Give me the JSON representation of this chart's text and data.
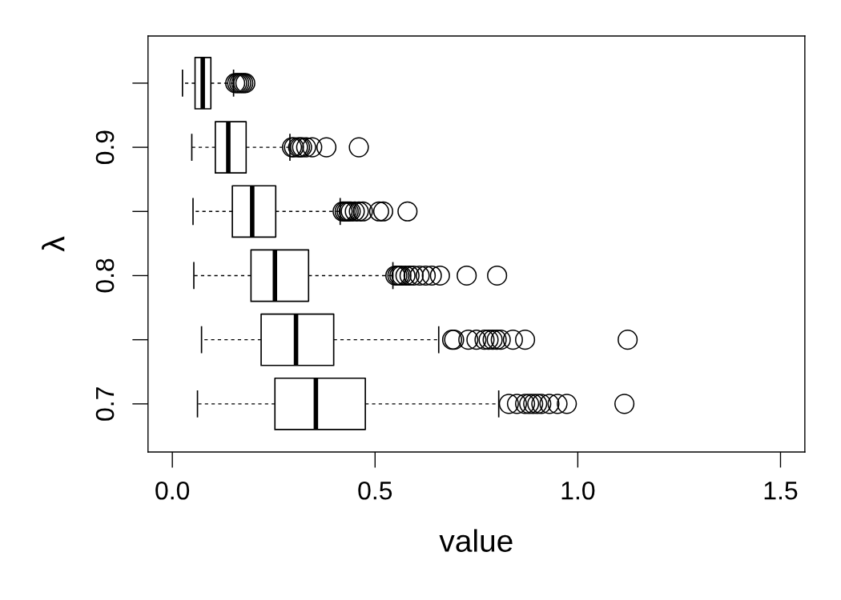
{
  "chart_data": {
    "type": "box",
    "orientation": "horizontal",
    "xlabel": "value",
    "ylabel": "λ",
    "categories": [
      null,
      "0.9",
      null,
      "0.8",
      null,
      "0.7"
    ],
    "boxes": [
      {
        "low": 0.025,
        "q1": 0.056,
        "median": 0.075,
        "q3": 0.095,
        "high": 0.151,
        "outliers": [
          0.155,
          0.16,
          0.165,
          0.17,
          0.175,
          0.18
        ]
      },
      {
        "low": 0.048,
        "q1": 0.106,
        "median": 0.138,
        "q3": 0.182,
        "high": 0.29,
        "outliers": [
          0.295,
          0.3,
          0.31,
          0.315,
          0.32,
          0.33,
          0.345,
          0.38,
          0.46
        ]
      },
      {
        "low": 0.051,
        "q1": 0.148,
        "median": 0.197,
        "q3": 0.255,
        "high": 0.414,
        "outliers": [
          0.42,
          0.425,
          0.43,
          0.435,
          0.44,
          0.45,
          0.46,
          0.47,
          0.51,
          0.52,
          0.58
        ]
      },
      {
        "low": 0.053,
        "q1": 0.194,
        "median": 0.253,
        "q3": 0.336,
        "high": 0.544,
        "outliers": [
          0.55,
          0.555,
          0.56,
          0.565,
          0.575,
          0.585,
          0.595,
          0.61,
          0.625,
          0.64,
          0.66,
          0.726,
          0.801
        ]
      },
      {
        "low": 0.072,
        "q1": 0.219,
        "median": 0.305,
        "q3": 0.398,
        "high": 0.657,
        "outliers": [
          0.69,
          0.695,
          0.73,
          0.75,
          0.77,
          0.78,
          0.79,
          0.8,
          0.81,
          0.84,
          0.87,
          1.123
        ]
      },
      {
        "low": 0.062,
        "q1": 0.253,
        "median": 0.354,
        "q3": 0.476,
        "high": 0.805,
        "outliers": [
          0.83,
          0.85,
          0.87,
          0.88,
          0.89,
          0.9,
          0.91,
          0.93,
          0.95,
          0.973,
          1.115
        ]
      }
    ],
    "xlim": [
      -0.06,
      1.56
    ],
    "xticks": [
      {
        "value": 0,
        "label": "0.0"
      },
      0.5,
      {
        "value": 1,
        "label": "1.0"
      },
      1.5
    ]
  }
}
